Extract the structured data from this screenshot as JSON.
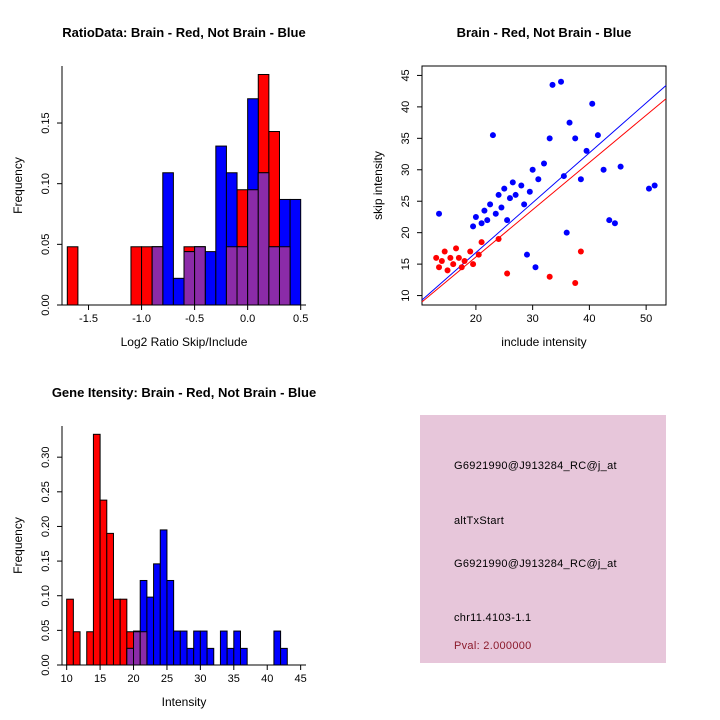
{
  "window": {
    "background": "#ffffff"
  },
  "colors": {
    "brain_red": "#FF0000",
    "not_brain_blue": "#0000FF",
    "overlap_purple": "#8B2BA8",
    "axis_black": "#000000",
    "info_box_pink": "#E7C6DA",
    "pval_dark_red": "#8B1A2B"
  },
  "chart_data": [
    {
      "id": "ratio-histogram",
      "type": "bar",
      "title": "RatioData: Brain - Red, Not Brain - Blue",
      "xlabel": "Log2 Ratio Skip/Include",
      "ylabel": "Frequency",
      "xlim": [
        -1.75,
        0.55
      ],
      "ylim": [
        0,
        0.197
      ],
      "bin_width": 0.1,
      "xticks": [
        -1.5,
        -1.0,
        -0.5,
        0.0,
        0.5
      ],
      "xtick_labels": [
        "-1.5",
        "-1.0",
        "-0.5",
        "0.0",
        "0.5"
      ],
      "yticks": [
        0,
        0.05,
        0.1,
        0.15
      ],
      "ytick_labels": [
        "0.00",
        "0.05",
        "0.10",
        "0.15"
      ],
      "grid": false,
      "legend": "none",
      "overlap_color": "#8B2BA8",
      "series": [
        {
          "name": "brain-red",
          "legend_label": "Brain - Red",
          "color": "#FF0000",
          "bins": [
            [
              -1.7,
              0.048
            ],
            [
              -1.1,
              0.048
            ],
            [
              -1.0,
              0.048
            ],
            [
              -0.9,
              0.048
            ],
            [
              -0.6,
              0.048
            ],
            [
              -0.5,
              0.048
            ],
            [
              -0.2,
              0.048
            ],
            [
              -0.1,
              0.095
            ],
            [
              0.0,
              0.095
            ],
            [
              0.1,
              0.19
            ],
            [
              0.2,
              0.143
            ],
            [
              0.3,
              0.048
            ]
          ]
        },
        {
          "name": "not-brain-blue",
          "legend_label": "Not Brain - Blue",
          "color": "#0000FF",
          "bins": [
            [
              -0.9,
              0.048
            ],
            [
              -0.8,
              0.109
            ],
            [
              -0.7,
              0.022
            ],
            [
              -0.6,
              0.044
            ],
            [
              -0.5,
              0.048
            ],
            [
              -0.4,
              0.044
            ],
            [
              -0.3,
              0.131
            ],
            [
              -0.2,
              0.109
            ],
            [
              -0.1,
              0.048
            ],
            [
              0.0,
              0.17
            ],
            [
              0.1,
              0.109
            ],
            [
              0.2,
              0.048
            ],
            [
              0.3,
              0.087
            ],
            [
              0.4,
              0.087
            ]
          ]
        }
      ]
    },
    {
      "id": "intensity-scatter",
      "type": "scatter",
      "title": "Brain - Red, Not Brain - Blue",
      "xlabel": "include intensity",
      "ylabel": "skip intensity",
      "xlim": [
        10.5,
        53.5
      ],
      "ylim": [
        8.5,
        46.5
      ],
      "xticks": [
        20,
        30,
        40,
        50
      ],
      "xtick_labels": [
        "20",
        "30",
        "40",
        "50"
      ],
      "yticks": [
        10,
        15,
        20,
        25,
        30,
        35,
        40,
        45
      ],
      "ytick_labels": [
        "10",
        "15",
        "20",
        "25",
        "30",
        "35",
        "40",
        "45"
      ],
      "grid": false,
      "box": true,
      "series": [
        {
          "name": "brain-red",
          "legend_label": "Brain - Red",
          "color": "#FF0000",
          "points": [
            [
              13,
              16
            ],
            [
              13.5,
              14.5
            ],
            [
              14,
              15.5
            ],
            [
              14.5,
              17
            ],
            [
              15,
              14
            ],
            [
              15.5,
              16
            ],
            [
              16,
              15
            ],
            [
              16.5,
              17.5
            ],
            [
              17,
              16
            ],
            [
              17.5,
              14.5
            ],
            [
              18,
              15.5
            ],
            [
              19,
              17
            ],
            [
              19.5,
              15
            ],
            [
              20.5,
              16.5
            ],
            [
              21,
              18.5
            ],
            [
              24,
              19
            ],
            [
              25.5,
              13.5
            ],
            [
              33,
              13
            ],
            [
              37.5,
              12
            ],
            [
              38.5,
              17
            ]
          ]
        },
        {
          "name": "not-brain-blue",
          "legend_label": "Not Brain - Blue",
          "color": "#0000FF",
          "points": [
            [
              13.5,
              23
            ],
            [
              19.5,
              21
            ],
            [
              20,
              22.5
            ],
            [
              21,
              21.5
            ],
            [
              21.5,
              23.5
            ],
            [
              22,
              22
            ],
            [
              22.5,
              24.5
            ],
            [
              23,
              35.5
            ],
            [
              23.5,
              23
            ],
            [
              24,
              26
            ],
            [
              24.5,
              24
            ],
            [
              25,
              27
            ],
            [
              25.5,
              22
            ],
            [
              26,
              25.5
            ],
            [
              26.5,
              28
            ],
            [
              27,
              26
            ],
            [
              28,
              27.5
            ],
            [
              28.5,
              24.5
            ],
            [
              29,
              16.5
            ],
            [
              29.5,
              26.5
            ],
            [
              30,
              30
            ],
            [
              30.5,
              14.5
            ],
            [
              31,
              28.5
            ],
            [
              32,
              31
            ],
            [
              33,
              35
            ],
            [
              33.5,
              43.5
            ],
            [
              35,
              44
            ],
            [
              35.5,
              29
            ],
            [
              36,
              20
            ],
            [
              36.5,
              37.5
            ],
            [
              37.5,
              35
            ],
            [
              38.5,
              28.5
            ],
            [
              39.5,
              33
            ],
            [
              40.5,
              40.5
            ],
            [
              41.5,
              35.5
            ],
            [
              42.5,
              30
            ],
            [
              43.5,
              22
            ],
            [
              44.5,
              21.5
            ],
            [
              45.5,
              30.5
            ],
            [
              50.5,
              27
            ],
            [
              51.5,
              27.5
            ]
          ]
        }
      ],
      "lines": [
        {
          "name": "red-diagonal-line",
          "color": "#FF0000",
          "from": [
            10.5,
            9.0
          ],
          "to": [
            53.5,
            41.3
          ]
        },
        {
          "name": "blue-diagonal-line",
          "color": "#0000FF",
          "from": [
            10.5,
            9.3
          ],
          "to": [
            53.5,
            43.4
          ]
        }
      ]
    },
    {
      "id": "gene-intensity-histogram",
      "type": "bar",
      "title": "Gene Itensity: Brain - Red, Not Brain - Blue",
      "xlabel": "Intensity",
      "ylabel": "Frequency",
      "xlim": [
        9.3,
        45.8
      ],
      "ylim": [
        0,
        0.345
      ],
      "bin_width": 1,
      "xticks": [
        10,
        15,
        20,
        25,
        30,
        35,
        40,
        45
      ],
      "xtick_labels": [
        "10",
        "15",
        "20",
        "25",
        "30",
        "35",
        "40",
        "45"
      ],
      "yticks": [
        0,
        0.05,
        0.1,
        0.15,
        0.2,
        0.25,
        0.3
      ],
      "ytick_labels": [
        "0.00",
        "0.05",
        "0.10",
        "0.15",
        "0.20",
        "0.25",
        "0.30"
      ],
      "grid": false,
      "legend": "none",
      "overlap_color": "#8B2BA8",
      "series": [
        {
          "name": "brain-red",
          "legend_label": "Brain - Red",
          "color": "#FF0000",
          "bins": [
            [
              10,
              0.095
            ],
            [
              11,
              0.048
            ],
            [
              13,
              0.048
            ],
            [
              14,
              0.333
            ],
            [
              15,
              0.238
            ],
            [
              16,
              0.19
            ],
            [
              17,
              0.095
            ],
            [
              18,
              0.095
            ],
            [
              19,
              0.048
            ],
            [
              20,
              0.048
            ],
            [
              21,
              0.048
            ]
          ]
        },
        {
          "name": "not-brain-blue",
          "legend_label": "Not Brain - Blue",
          "color": "#0000FF",
          "bins": [
            [
              19,
              0.024
            ],
            [
              20,
              0.049
            ],
            [
              21,
              0.122
            ],
            [
              22,
              0.098
            ],
            [
              23,
              0.146
            ],
            [
              24,
              0.195
            ],
            [
              25,
              0.122
            ],
            [
              26,
              0.049
            ],
            [
              27,
              0.049
            ],
            [
              28,
              0.024
            ],
            [
              29,
              0.049
            ],
            [
              30,
              0.049
            ],
            [
              31,
              0.024
            ],
            [
              33,
              0.049
            ],
            [
              34,
              0.024
            ],
            [
              35,
              0.049
            ],
            [
              36,
              0.024
            ],
            [
              41,
              0.049
            ],
            [
              42,
              0.024
            ]
          ]
        }
      ]
    }
  ],
  "info_box": {
    "background": "#E7C6DA",
    "lines": [
      {
        "text": "G6921990@J913284_RC@j_at",
        "color": "#000000"
      },
      {
        "text": "altTxStart",
        "color": "#000000"
      },
      {
        "text": "G6921990@J913284_RC@j_at",
        "color": "#000000"
      },
      {
        "text": "chr11.4103-1.1",
        "color": "#000000"
      },
      {
        "text": "Pval: 2.000000",
        "color": "#8B1A2B"
      }
    ]
  }
}
